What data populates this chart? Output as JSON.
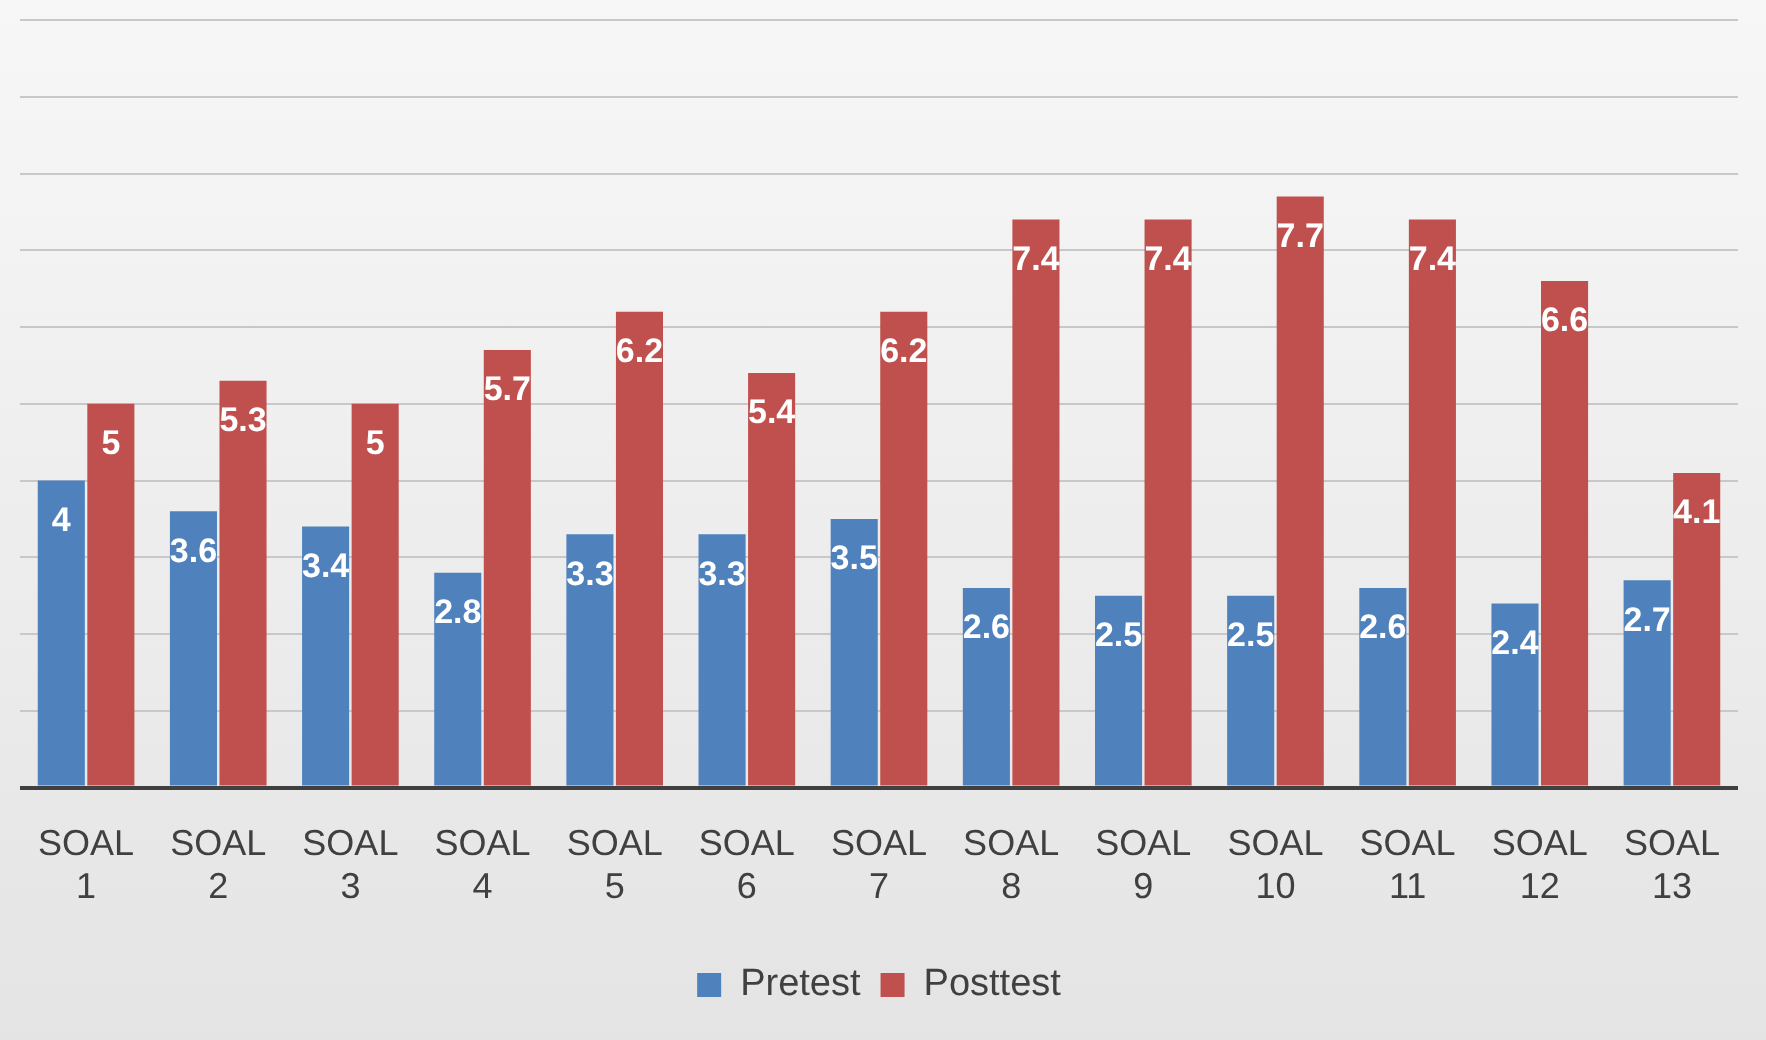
{
  "chart_data": {
    "type": "bar",
    "categories": [
      "SOAL 1",
      "SOAL 2",
      "SOAL 3",
      "SOAL 4",
      "SOAL 5",
      "SOAL 6",
      "SOAL 7",
      "SOAL 8",
      "SOAL 9",
      "SOAL 10",
      "SOAL 11",
      "SOAL 12",
      "SOAL 13"
    ],
    "series": [
      {
        "name": "Pretest",
        "color": "#4f81bd",
        "values": [
          4,
          3.6,
          3.4,
          2.8,
          3.3,
          3.3,
          3.5,
          2.6,
          2.5,
          2.5,
          2.6,
          2.4,
          2.7
        ]
      },
      {
        "name": "Posttest",
        "color": "#c0504d",
        "values": [
          5,
          5.3,
          5,
          5.7,
          6.2,
          5.4,
          6.2,
          7.4,
          7.4,
          7.7,
          7.4,
          6.6,
          4.1
        ]
      }
    ],
    "ylim": [
      0,
      10
    ],
    "yticks": [
      {
        "value": 0,
        "label": null
      },
      {
        "value": 1,
        "label": null
      },
      {
        "value": 2,
        "label": null
      },
      {
        "value": 3,
        "label": null
      },
      {
        "value": 4,
        "label": null
      },
      {
        "value": 5,
        "label": null
      },
      {
        "value": 6,
        "label": null
      },
      {
        "value": 7,
        "label": null
      },
      {
        "value": 8,
        "label": null
      },
      {
        "value": 9,
        "label": null
      },
      {
        "value": 10,
        "label": null
      }
    ],
    "grid": "y",
    "legend": "bottom",
    "data_labels": true,
    "tick_labels": "x"
  }
}
